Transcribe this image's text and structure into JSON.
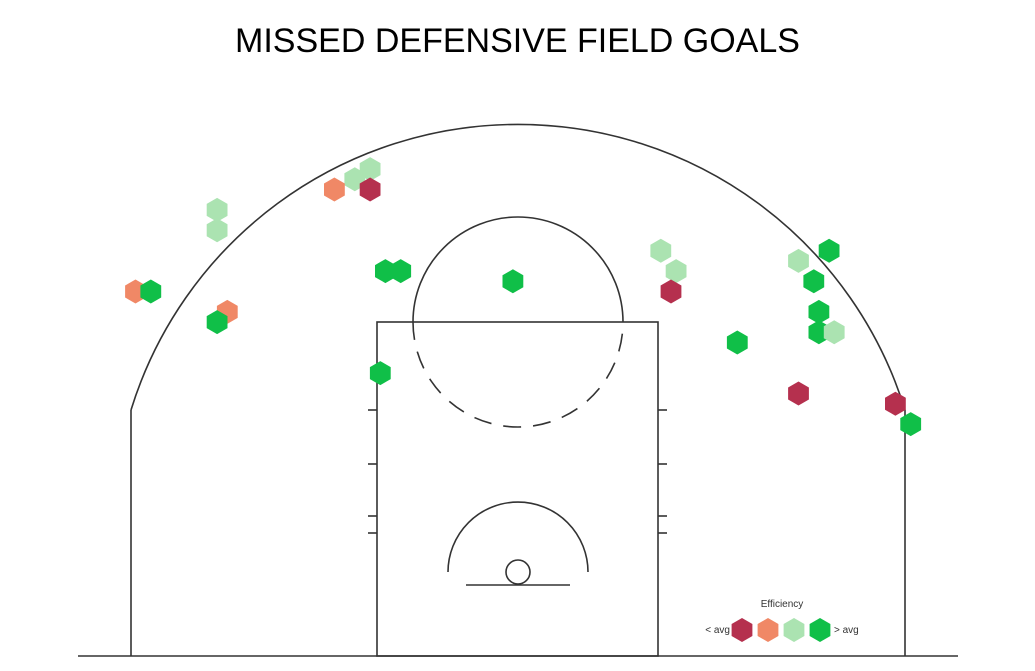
{
  "chart_data": {
    "type": "hexbin",
    "title": "MISSED DEFENSIVE FIELD GOALS",
    "legend": {
      "title": "Efficiency",
      "low_label": "< avg",
      "high_label": "> avg",
      "position": "bottom-right",
      "levels": [
        "very-low",
        "low",
        "high",
        "very-high"
      ]
    },
    "colors": {
      "very-low": "#b5304e",
      "low": "#f08866",
      "high": "#abe3b1",
      "very-high": "#10bf48"
    },
    "coordinate_note": "feet, origin at basket, x left/right, y toward half court",
    "shots": [
      {
        "x": -14.5,
        "y": 39.5,
        "level": "high"
      },
      {
        "x": -16.0,
        "y": 38.5,
        "level": "high"
      },
      {
        "x": -18.0,
        "y": 37.5,
        "level": "low"
      },
      {
        "x": -14.5,
        "y": 37.5,
        "level": "very-low"
      },
      {
        "x": -29.5,
        "y": 35.5,
        "level": "high"
      },
      {
        "x": -29.5,
        "y": 33.5,
        "level": "high"
      },
      {
        "x": 14.0,
        "y": 31.5,
        "level": "high"
      },
      {
        "x": 30.5,
        "y": 31.5,
        "level": "very-high"
      },
      {
        "x": 27.5,
        "y": 30.5,
        "level": "high"
      },
      {
        "x": -13.0,
        "y": 29.5,
        "level": "very-high"
      },
      {
        "x": -11.5,
        "y": 29.5,
        "level": "very-high"
      },
      {
        "x": 15.5,
        "y": 29.5,
        "level": "high"
      },
      {
        "x": -0.5,
        "y": 28.5,
        "level": "very-high"
      },
      {
        "x": 29.0,
        "y": 28.5,
        "level": "very-high"
      },
      {
        "x": -37.5,
        "y": 27.5,
        "level": "low"
      },
      {
        "x": -36.0,
        "y": 27.5,
        "level": "very-high"
      },
      {
        "x": 15.0,
        "y": 27.5,
        "level": "very-low"
      },
      {
        "x": -28.5,
        "y": 25.5,
        "level": "low"
      },
      {
        "x": 29.5,
        "y": 25.5,
        "level": "very-high"
      },
      {
        "x": -29.5,
        "y": 24.5,
        "level": "very-high"
      },
      {
        "x": 29.5,
        "y": 23.5,
        "level": "very-high"
      },
      {
        "x": 31.0,
        "y": 23.5,
        "level": "high"
      },
      {
        "x": 21.5,
        "y": 22.5,
        "level": "very-high"
      },
      {
        "x": -13.5,
        "y": 19.5,
        "level": "very-high"
      },
      {
        "x": 27.5,
        "y": 17.5,
        "level": "very-low"
      },
      {
        "x": 37.0,
        "y": 16.5,
        "level": "very-low"
      },
      {
        "x": 38.5,
        "y": 14.5,
        "level": "very-high"
      }
    ]
  }
}
